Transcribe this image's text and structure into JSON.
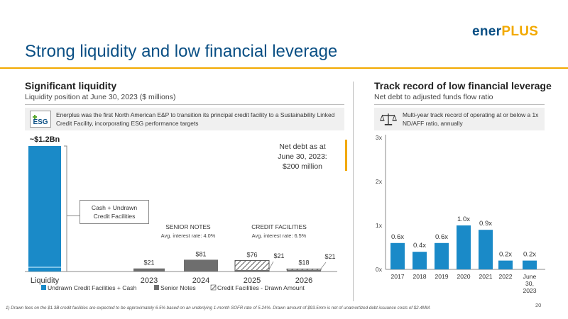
{
  "header": {
    "logo_part1": "ener",
    "logo_part2": "PLUS",
    "title": "Strong liquidity and low financial leverage"
  },
  "left": {
    "title": "Significant liquidity",
    "subtitle": "Liquidity position at June 30, 2023 ($ millions)",
    "esg_badge": "ESG",
    "esg_note": "Enerplus was the first North American E&P to transition its principal credit facility to a Sustainability Linked Credit Facility, incorporating ESG performance targets",
    "net_debt_line1": "Net debt as at",
    "net_debt_line2": "June 30, 2023:",
    "net_debt_line3": "$200 million",
    "callout_line1": "Cash + Undrawn",
    "callout_line2": "Credit Facilities",
    "senior_notes_title": "SENIOR NOTES",
    "senior_notes_rate": "Avg. interest rate: 4.0%",
    "credit_title": "CREDIT FACILITIES",
    "credit_rate": "Avg. interest rate: 6.5%"
  },
  "right": {
    "title": "Track record of low financial leverage",
    "subtitle": "Net debt to adjusted funds flow ratio",
    "note": "Multi-year track record of operating at or below a 1x ND/AFF ratio, annually"
  },
  "footnote": "1)  Drawn fees on the $1.3B credit facilities are expected to be approximately 6.5% based on an underlying 1-month SOFR rate of 5.24%. Drawn amount of $93.5mm is net of unamortized debt issuance costs of $2.4MM.",
  "page_number": "20",
  "colors": {
    "blue": "#1a8ac8",
    "dark_blue": "#0a4f84",
    "gold": "#f2a900",
    "gray_bar": "#6e6e6e",
    "hatch": "#555555"
  },
  "chart_data": [
    {
      "type": "bar",
      "title": "Significant liquidity",
      "subtitle": "Liquidity position at June 30, 2023 ($ millions)",
      "categories": [
        "Liquidity",
        "2023",
        "2024",
        "2025",
        "2026"
      ],
      "series": [
        {
          "name": "Undrawn Credit Facilities + Cash",
          "values": [
            1200,
            0,
            0,
            0,
            0
          ]
        },
        {
          "name": "Senior Notes",
          "values": [
            0,
            21,
            81,
            21,
            21
          ]
        },
        {
          "name": "Credit Facilities - Drawn Amount",
          "values": [
            0,
            0,
            0,
            76,
            18
          ]
        }
      ],
      "bar_labels": [
        {
          "category": "Liquidity",
          "text": "~$1.2Bn"
        },
        {
          "category": "2023",
          "text": "$21"
        },
        {
          "category": "2024",
          "text": "$81"
        },
        {
          "category": "2025",
          "text": "$76"
        },
        {
          "category": "2025",
          "text": "$21"
        },
        {
          "category": "2026",
          "text": "$18"
        },
        {
          "category": "2026",
          "text": "$21"
        }
      ],
      "legend": [
        "Undrawn Credit Facilities + Cash",
        "Senior Notes",
        "Credit Facilities - Drawn Amount"
      ],
      "legend_position": "bottom",
      "grid": false
    },
    {
      "type": "bar",
      "title": "Track record of low financial leverage",
      "subtitle": "Net debt to adjusted funds flow ratio",
      "categories": [
        "2017",
        "2018",
        "2019",
        "2020",
        "2021",
        "2022",
        "June 30, 2023"
      ],
      "values": [
        0.6,
        0.4,
        0.6,
        1.0,
        0.9,
        0.2,
        0.2
      ],
      "value_labels": [
        "0.6x",
        "0.4x",
        "0.6x",
        "1.0x",
        "0.9x",
        "0.2x",
        "0.2x"
      ],
      "yticks": [
        "0x",
        "1x",
        "2x",
        "3x"
      ],
      "ylim": [
        0,
        3
      ],
      "grid": false
    }
  ]
}
